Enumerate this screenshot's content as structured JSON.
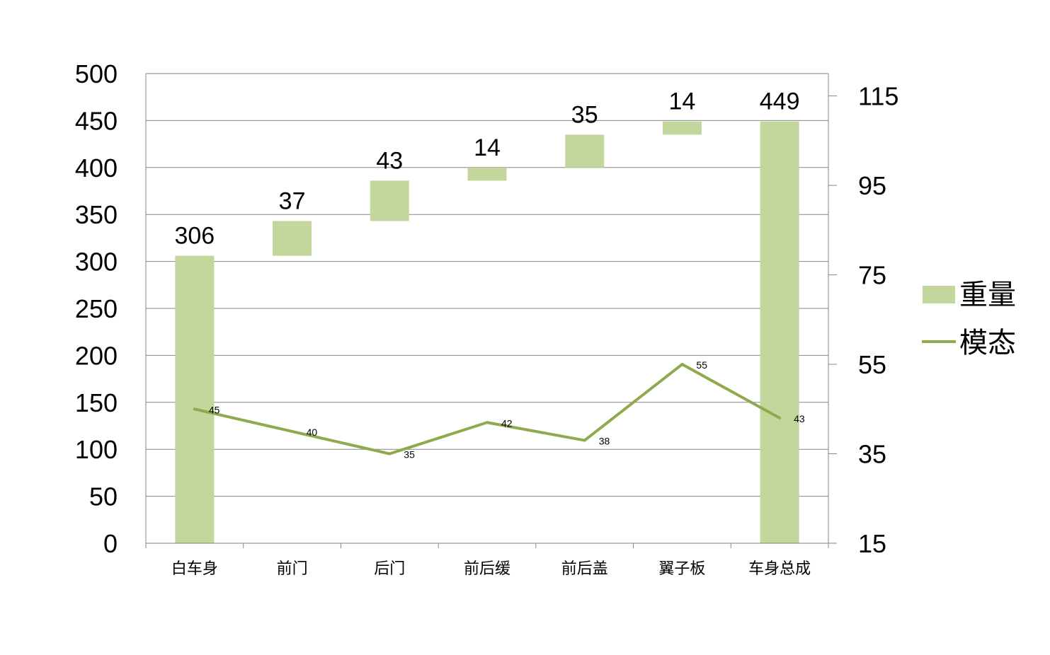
{
  "chart_data": {
    "type": "bar",
    "subtype": "waterfall-with-line",
    "categories": [
      "白车身",
      "前门",
      "后门",
      "前后缓",
      "前后盖",
      "翼子板",
      "车身总成"
    ],
    "series": [
      {
        "name": "重量",
        "type": "bar",
        "axis": "left",
        "color": "#c3d69b",
        "values": [
          306,
          37,
          43,
          14,
          35,
          14,
          449
        ],
        "kinds": [
          "total",
          "step",
          "step",
          "step",
          "step",
          "step",
          "total"
        ]
      },
      {
        "name": "模态",
        "type": "line",
        "axis": "right",
        "color": "#8faa4c",
        "values": [
          45,
          40,
          35,
          42,
          38,
          55,
          43
        ]
      }
    ],
    "y_left": {
      "min": 0,
      "max": 500,
      "step": 50,
      "ticks": [
        "0",
        "50",
        "100",
        "150",
        "200",
        "250",
        "300",
        "350",
        "400",
        "450",
        "500"
      ]
    },
    "y_right": {
      "min": 15,
      "max": 120,
      "ticks": [
        "15",
        "35",
        "55",
        "75",
        "95",
        "115"
      ]
    },
    "grid": true,
    "legend": "right",
    "title": "",
    "xlabel": "",
    "ylabel": ""
  }
}
